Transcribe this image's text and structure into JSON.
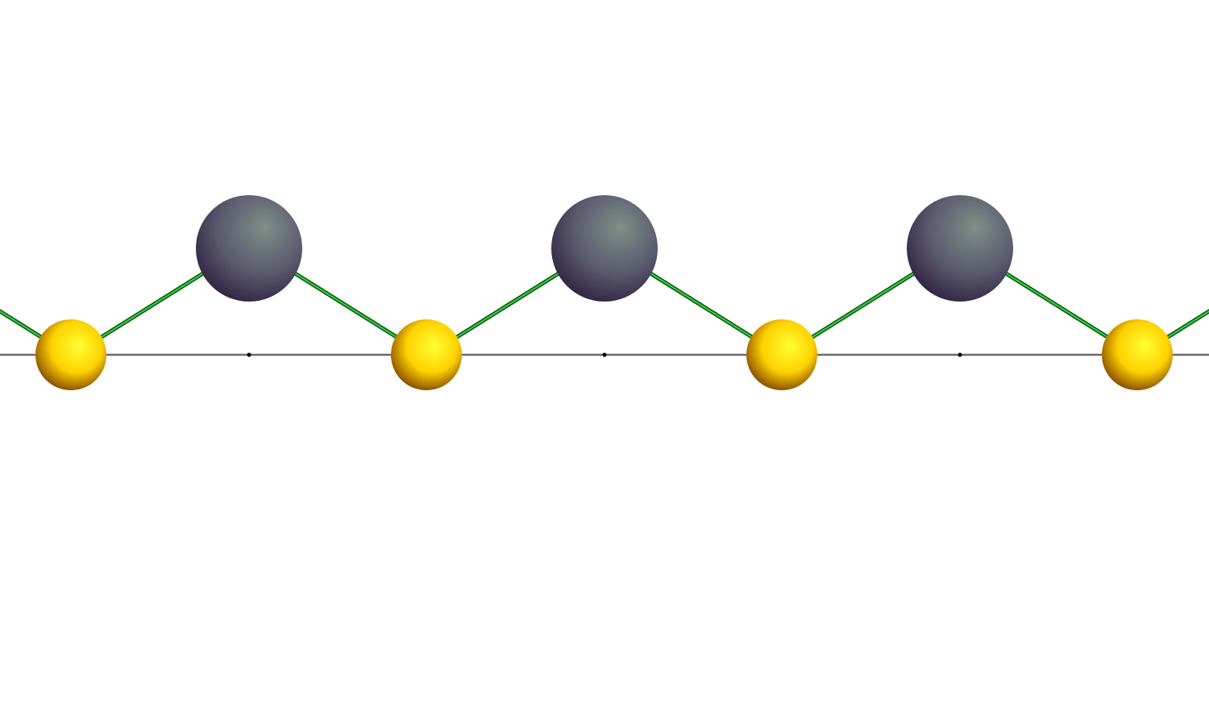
{
  "structure": {
    "upper_atom_count": 3,
    "lower_atom_count": 4,
    "repeat_period_count": 3
  },
  "colors": {
    "background": "#ffffff",
    "baseline": "#6e6672",
    "lattice_point": "#111111",
    "bond_light": "#2ee03a",
    "bond_dark": "#0b4a14",
    "lower_atom_highlight": "#ffff33",
    "lower_atom_mid": "#ffd200",
    "lower_atom_shadow": "#7a3d00",
    "upper_atom_highlight": "#7f8f86",
    "upper_atom_mid": "#5a5a6e",
    "upper_atom_shadow": "#2a1a3a"
  },
  "icons": {
    "upper_atom": "dark-gray-sphere",
    "lower_atom": "yellow-sphere",
    "bond": "green-cylinder"
  }
}
